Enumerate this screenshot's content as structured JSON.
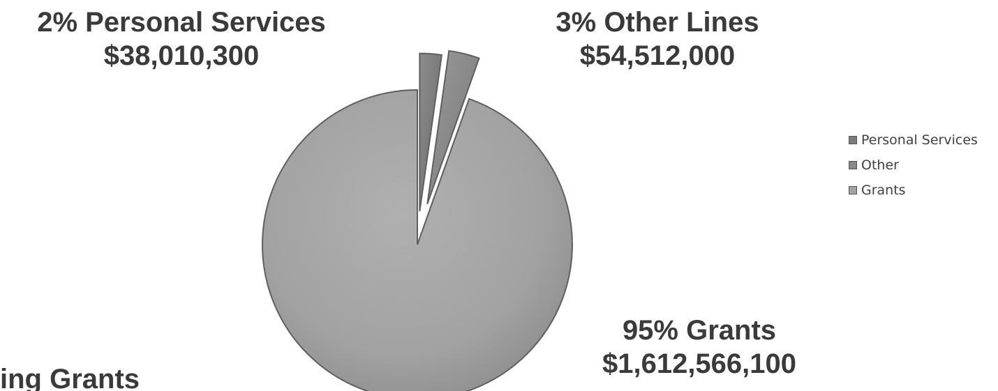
{
  "chart_data": {
    "type": "pie",
    "categories": [
      "Personal Services",
      "Other",
      "Grants"
    ],
    "values": [
      38010300,
      54512000,
      1612566100
    ],
    "percent_labels": [
      "2%",
      "3%",
      "95%"
    ],
    "callouts": [
      {
        "category": "Personal Services",
        "line1": "2% Personal Services",
        "line2": "$38,010,300"
      },
      {
        "category": "Other",
        "line1": "3% Other Lines",
        "line2": "$54,512,000"
      },
      {
        "category": "Grants",
        "line1": "95% Grants",
        "line2": "$1,612,566,100"
      }
    ],
    "colors": [
      "#7c7c7c",
      "#8a8a8a",
      "#a3a3a3"
    ],
    "legend": {
      "placement": "right",
      "entries": [
        "Personal Services",
        "Other",
        "Grants"
      ]
    },
    "exploded": true
  },
  "partial_text": "ing Grants"
}
